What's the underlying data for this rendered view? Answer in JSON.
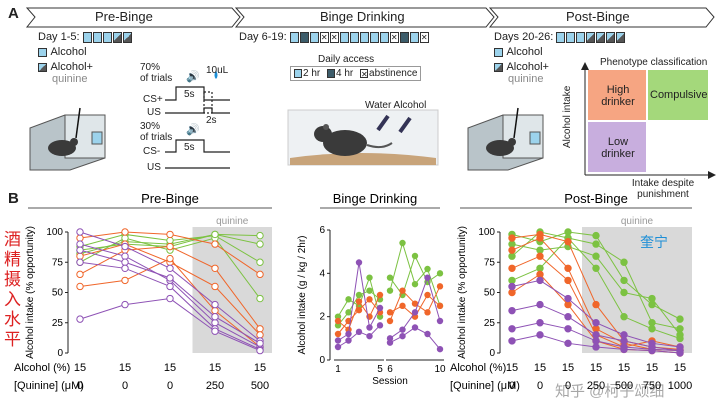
{
  "panel_a": {
    "letter": "A",
    "banners": [
      "Pre-Binge",
      "Binge Drinking",
      "Post-Binge"
    ],
    "days": {
      "pre": "Day 1-5:",
      "binge": "Day 6-19:",
      "post": "Days 20-26:"
    },
    "legend_alcohol": "Alcohol",
    "legend_alcohol_plus": "Alcohol+",
    "legend_quinine": "quinine",
    "daily_access_title": "Daily access",
    "daily_access": [
      "2 hr",
      "4 hr",
      "abstinence"
    ],
    "trials": {
      "p70": "70%",
      "of_trials": "of trials",
      "p30": "30%",
      "cs_plus": "CS+",
      "cs_minus": "CS-",
      "us": "US",
      "dur1": "5s",
      "dur2": "5s",
      "delay": "2s",
      "volume": "10uL"
    },
    "water_alcohol": "Water Alcohol",
    "phenotype": {
      "title": "Phenotype classification",
      "y_label": "Alcohol intake",
      "x_label": "Intake despite punishment",
      "high": "High drinker",
      "compulsive": "Compulsive",
      "low": "Low drinker",
      "colors": {
        "high": "#f6a582",
        "compulsive": "#a4d87b",
        "low": "#c8aede"
      }
    }
  },
  "panel_b": {
    "letter": "B",
    "side_text_cn": "酒精摄入水平",
    "side_text_cn2": "奎宁",
    "watermark": "知乎 @柯子颂细",
    "row_labels": {
      "alcohol": "Alcohol (%)",
      "quinine": "[Quinine] (μM)"
    },
    "colors": {
      "orange": "#f0662a",
      "green": "#7cc242",
      "purple": "#8e52b5",
      "shade": "#d9d9d9"
    }
  },
  "chart_data": [
    {
      "type": "line",
      "title": "Pre-Binge",
      "ylabel": "Alcohol intake (% opportunity)",
      "ylim": [
        0,
        100
      ],
      "yticks": [
        0,
        25,
        50,
        75,
        100
      ],
      "shaded_label": "quinine",
      "shaded_from_index": 3,
      "categories": [
        "15",
        "15",
        "15",
        "15",
        "15"
      ],
      "quinine": [
        "0",
        "0",
        "0",
        "250",
        "500"
      ],
      "series": [
        {
          "color": "green",
          "values": [
            82,
            92,
            90,
            98,
            90
          ]
        },
        {
          "color": "green",
          "values": [
            88,
            98,
            93,
            97,
            75
          ]
        },
        {
          "color": "green",
          "values": [
            75,
            95,
            85,
            95,
            45
          ]
        },
        {
          "color": "green",
          "values": [
            85,
            90,
            88,
            98,
            97
          ]
        },
        {
          "color": "orange",
          "values": [
            95,
            100,
            98,
            90,
            65
          ]
        },
        {
          "color": "orange",
          "values": [
            65,
            85,
            88,
            70,
            20
          ]
        },
        {
          "color": "orange",
          "values": [
            80,
            90,
            75,
            55,
            15
          ]
        },
        {
          "color": "orange",
          "values": [
            55,
            60,
            78,
            35,
            5
          ]
        },
        {
          "color": "purple",
          "values": [
            100,
            88,
            70,
            40,
            10
          ]
        },
        {
          "color": "purple",
          "values": [
            90,
            80,
            60,
            25,
            5
          ]
        },
        {
          "color": "purple",
          "values": [
            85,
            75,
            62,
            30,
            8
          ]
        },
        {
          "color": "purple",
          "values": [
            75,
            70,
            55,
            20,
            3
          ]
        },
        {
          "color": "purple",
          "values": [
            28,
            40,
            45,
            18,
            2
          ]
        }
      ]
    },
    {
      "type": "scatter",
      "title": "Binge Drinking",
      "ylabel": "Alcohol intake (g / kg / 2hr)",
      "xlabel": "Session",
      "ylim": [
        0,
        6
      ],
      "yticks": [
        0,
        2,
        4,
        6
      ],
      "xticks": [
        "1",
        "5",
        "6",
        "10"
      ],
      "series": [
        {
          "color": "green",
          "x": [
            1,
            2,
            3,
            4,
            5,
            6,
            7,
            8,
            9,
            10
          ],
          "values": [
            2.0,
            2.8,
            2.5,
            3.8,
            2.0,
            3.2,
            5.4,
            3.5,
            4.2,
            2.5
          ]
        },
        {
          "color": "green",
          "x": [
            1,
            2,
            3,
            4,
            5,
            6,
            7,
            8,
            9,
            10
          ],
          "values": [
            1.6,
            2.2,
            3.0,
            3.2,
            2.8,
            3.8,
            3.0,
            4.8,
            3.6,
            4.0
          ]
        },
        {
          "color": "orange",
          "x": [
            1,
            2,
            3,
            4,
            5,
            6,
            7,
            8,
            9,
            10
          ],
          "values": [
            1.2,
            1.8,
            2.3,
            2.8,
            2.2,
            2.2,
            2.5,
            2.0,
            3.0,
            2.5
          ]
        },
        {
          "color": "orange",
          "x": [
            1,
            2,
            3,
            4,
            5,
            6,
            7,
            8,
            9,
            10
          ],
          "values": [
            1.8,
            1.4,
            2.7,
            2.0,
            3.0,
            1.8,
            3.2,
            2.6,
            2.2,
            3.4
          ]
        },
        {
          "color": "purple",
          "x": [
            1,
            2,
            3,
            4,
            5,
            6,
            7,
            8,
            9,
            10
          ],
          "values": [
            0.9,
            1.2,
            4.5,
            1.5,
            2.4,
            1.0,
            1.4,
            2.2,
            3.8,
            1.8
          ]
        },
        {
          "color": "purple",
          "x": [
            1,
            2,
            3,
            4,
            5,
            6,
            7,
            8,
            9,
            10
          ],
          "values": [
            0.6,
            0.9,
            1.3,
            1.1,
            1.6,
            0.8,
            1.1,
            1.5,
            1.2,
            0.5
          ]
        }
      ]
    },
    {
      "type": "line",
      "title": "Post-Binge",
      "ylabel": "Alcohol intake (% opportunity)",
      "ylim": [
        0,
        100
      ],
      "yticks": [
        0,
        25,
        50,
        75,
        100
      ],
      "shaded_label": "quinine",
      "shaded_from_index": 3,
      "categories": [
        "15",
        "15",
        "15",
        "15",
        "15",
        "15",
        "15"
      ],
      "quinine": [
        "0",
        "0",
        "0",
        "250",
        "500",
        "750",
        "1000"
      ],
      "series": [
        {
          "color": "green",
          "values": [
            98,
            92,
            100,
            97,
            60,
            40,
            28
          ]
        },
        {
          "color": "green",
          "values": [
            80,
            100,
            95,
            90,
            75,
            25,
            20
          ]
        },
        {
          "color": "green",
          "values": [
            90,
            85,
            88,
            80,
            50,
            45,
            15
          ]
        },
        {
          "color": "green",
          "values": [
            60,
            70,
            95,
            70,
            30,
            20,
            12
          ]
        },
        {
          "color": "orange",
          "values": [
            95,
            98,
            92,
            40,
            10,
            5,
            3
          ]
        },
        {
          "color": "orange",
          "values": [
            85,
            95,
            70,
            20,
            8,
            3,
            2
          ]
        },
        {
          "color": "orange",
          "values": [
            70,
            80,
            60,
            15,
            5,
            10,
            5
          ]
        },
        {
          "color": "orange",
          "values": [
            50,
            65,
            40,
            10,
            3,
            2,
            0
          ]
        },
        {
          "color": "purple",
          "values": [
            55,
            60,
            45,
            25,
            15,
            8,
            5
          ]
        },
        {
          "color": "purple",
          "values": [
            35,
            40,
            30,
            15,
            10,
            5,
            2
          ]
        },
        {
          "color": "purple",
          "values": [
            20,
            25,
            20,
            10,
            5,
            3,
            2
          ]
        },
        {
          "color": "purple",
          "values": [
            10,
            15,
            8,
            5,
            3,
            2,
            0
          ]
        }
      ]
    }
  ]
}
